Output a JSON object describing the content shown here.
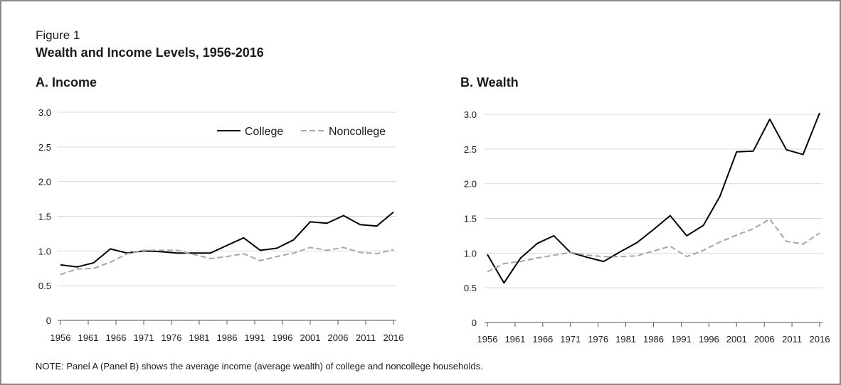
{
  "figure": {
    "label": "Figure 1",
    "title": "Wealth and Income Levels, 1956-2016",
    "note": "NOTE: Panel A (Panel B) shows the average income (average wealth) of college and noncollege households."
  },
  "colors": {
    "college": "#000000",
    "noncollege": "#a6a6a6",
    "gridline": "#d9d9d9"
  },
  "chart_data": [
    {
      "id": "income",
      "type": "line",
      "title": "A. Income",
      "xlabel": "",
      "ylabel": "",
      "x": [
        1956,
        1959,
        1962,
        1965,
        1968,
        1971,
        1974,
        1977,
        1980,
        1983,
        1986,
        1989,
        1992,
        1995,
        1998,
        2001,
        2004,
        2007,
        2010,
        2013,
        2016
      ],
      "x_ticks": [
        1956,
        1961,
        1966,
        1971,
        1976,
        1981,
        1986,
        1991,
        1996,
        2001,
        2006,
        2011,
        2016
      ],
      "y_ticks": [
        0,
        0.5,
        1.0,
        1.5,
        2.0,
        2.5,
        3.0
      ],
      "y_tick_labels": [
        "0",
        "0.5",
        "1.0",
        "1.5",
        "2.0",
        "2.5",
        "3.0"
      ],
      "ylim": [
        0,
        3.0
      ],
      "xlim": [
        1956,
        2016
      ],
      "grid": true,
      "legend_position": "top-right",
      "series": [
        {
          "name": "College",
          "style": "solid",
          "values": [
            0.8,
            0.77,
            0.83,
            1.03,
            0.97,
            1.0,
            0.99,
            0.97,
            0.97,
            0.97,
            1.08,
            1.19,
            1.01,
            1.04,
            1.16,
            1.42,
            1.4,
            1.51,
            1.38,
            1.36,
            1.56
          ]
        },
        {
          "name": "Noncollege",
          "style": "dashed",
          "values": [
            0.66,
            0.74,
            0.75,
            0.84,
            0.96,
            1.01,
            1.01,
            1.01,
            0.95,
            0.89,
            0.92,
            0.96,
            0.86,
            0.92,
            0.97,
            1.05,
            1.01,
            1.05,
            0.98,
            0.96,
            1.02
          ]
        }
      ]
    },
    {
      "id": "wealth",
      "type": "line",
      "title": "B. Wealth",
      "xlabel": "",
      "ylabel": "",
      "x": [
        1956,
        1959,
        1962,
        1965,
        1968,
        1971,
        1974,
        1977,
        1980,
        1983,
        1986,
        1989,
        1992,
        1995,
        1998,
        2001,
        2004,
        2007,
        2010,
        2013,
        2016
      ],
      "x_ticks": [
        1956,
        1961,
        1966,
        1971,
        1976,
        1981,
        1986,
        1991,
        1996,
        2001,
        2006,
        2011,
        2016
      ],
      "y_ticks": [
        0,
        0.5,
        1.0,
        1.5,
        2.0,
        2.5,
        3.0
      ],
      "y_tick_labels": [
        "0",
        "0.5",
        "1.0",
        "1.5",
        "2.0",
        "2.5",
        "3.0"
      ],
      "ylim": [
        0,
        3.0
      ],
      "xlim": [
        1956,
        2016
      ],
      "grid": true,
      "series": [
        {
          "name": "College",
          "style": "solid",
          "values": [
            0.98,
            0.57,
            0.93,
            1.14,
            1.25,
            1.01,
            0.94,
            0.88,
            1.02,
            1.15,
            1.34,
            1.54,
            1.25,
            1.4,
            1.82,
            2.46,
            2.47,
            2.93,
            2.49,
            2.42,
            3.02
          ]
        },
        {
          "name": "Noncollege",
          "style": "dashed",
          "values": [
            0.73,
            0.85,
            0.88,
            0.93,
            0.97,
            1.01,
            0.97,
            0.95,
            0.95,
            0.96,
            1.03,
            1.1,
            0.95,
            1.04,
            1.16,
            1.26,
            1.35,
            1.49,
            1.17,
            1.13,
            1.29
          ]
        }
      ]
    }
  ]
}
